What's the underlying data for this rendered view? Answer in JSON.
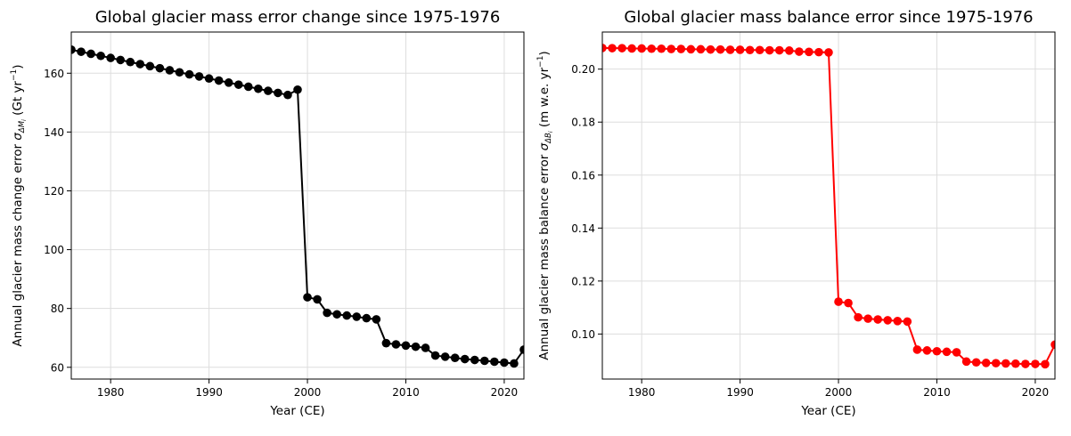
{
  "chart_data": [
    {
      "type": "line",
      "title": "Global glacier mass error change since 1975-1976",
      "xlabel": "Year (CE)",
      "ylabel_prefix": "Annual glacier mass change error ",
      "ylabel_symbol": "σ",
      "ylabel_subscript": "ΔM",
      "ylabel_subsub": "i",
      "ylabel_unit_open": " (Gt yr",
      "ylabel_unit_exp": "−1",
      "ylabel_unit_close": ")",
      "xlim": [
        1976,
        2022
      ],
      "ylim": [
        56,
        174
      ],
      "xticks": [
        1980,
        1990,
        2000,
        2010,
        2020
      ],
      "yticks": [
        60,
        80,
        100,
        120,
        140,
        160
      ],
      "grid": true,
      "color": "#000000",
      "x": [
        1976,
        1977,
        1978,
        1979,
        1980,
        1981,
        1982,
        1983,
        1984,
        1985,
        1986,
        1987,
        1988,
        1989,
        1990,
        1991,
        1992,
        1993,
        1994,
        1995,
        1996,
        1997,
        1998,
        1999,
        2000,
        2001,
        2002,
        2003,
        2004,
        2005,
        2006,
        2007,
        2008,
        2009,
        2010,
        2011,
        2012,
        2013,
        2014,
        2015,
        2016,
        2017,
        2018,
        2019,
        2020,
        2021,
        2022
      ],
      "y": [
        168.0,
        167.3,
        166.6,
        165.9,
        165.2,
        164.5,
        163.8,
        163.1,
        162.4,
        161.7,
        161.0,
        160.3,
        159.6,
        158.9,
        158.2,
        157.5,
        156.8,
        156.1,
        155.4,
        154.7,
        154.0,
        153.3,
        152.6,
        154.4,
        83.8,
        83.1,
        78.5,
        78.0,
        77.6,
        77.2,
        76.7,
        76.3,
        68.2,
        67.8,
        67.4,
        67.0,
        66.6,
        64.0,
        63.6,
        63.2,
        62.8,
        62.5,
        62.2,
        61.9,
        61.6,
        61.3,
        66.0
      ]
    },
    {
      "type": "line",
      "title": "Global glacier mass balance error since 1975-1976",
      "xlabel": "Year (CE)",
      "ylabel_prefix": "Annual glacier mass balance error ",
      "ylabel_symbol": "σ",
      "ylabel_subscript": "ΔB",
      "ylabel_subsub": "i",
      "ylabel_unit_open": " (m w.e. yr",
      "ylabel_unit_exp": "−1",
      "ylabel_unit_close": ")",
      "xlim": [
        1976,
        2022
      ],
      "ylim": [
        0.083,
        0.214
      ],
      "xticks": [
        1980,
        1990,
        2000,
        2010,
        2020
      ],
      "yticks": [
        0.1,
        0.12,
        0.14,
        0.16,
        0.18,
        0.2
      ],
      "ytick_decimals": 2,
      "grid": true,
      "color": "#ff0000",
      "x": [
        1976,
        1977,
        1978,
        1979,
        1980,
        1981,
        1982,
        1983,
        1984,
        1985,
        1986,
        1987,
        1988,
        1989,
        1990,
        1991,
        1992,
        1993,
        1994,
        1995,
        1996,
        1997,
        1998,
        1999,
        2000,
        2001,
        2002,
        2003,
        2004,
        2005,
        2006,
        2007,
        2008,
        2009,
        2010,
        2011,
        2012,
        2013,
        2014,
        2015,
        2016,
        2017,
        2018,
        2019,
        2020,
        2021,
        2022
      ],
      "y": [
        0.208,
        0.2079,
        0.2079,
        0.2078,
        0.2078,
        0.2077,
        0.2077,
        0.2076,
        0.2076,
        0.2075,
        0.2075,
        0.2074,
        0.2074,
        0.2073,
        0.2073,
        0.2072,
        0.2072,
        0.2071,
        0.2071,
        0.207,
        0.2066,
        0.2065,
        0.2064,
        0.2063,
        0.1122,
        0.1117,
        0.1063,
        0.1058,
        0.1055,
        0.1052,
        0.1049,
        0.1047,
        0.0941,
        0.0938,
        0.0935,
        0.0933,
        0.0931,
        0.0896,
        0.0893,
        0.0891,
        0.089,
        0.0889,
        0.0888,
        0.0887,
        0.0887,
        0.0886,
        0.096
      ]
    }
  ]
}
